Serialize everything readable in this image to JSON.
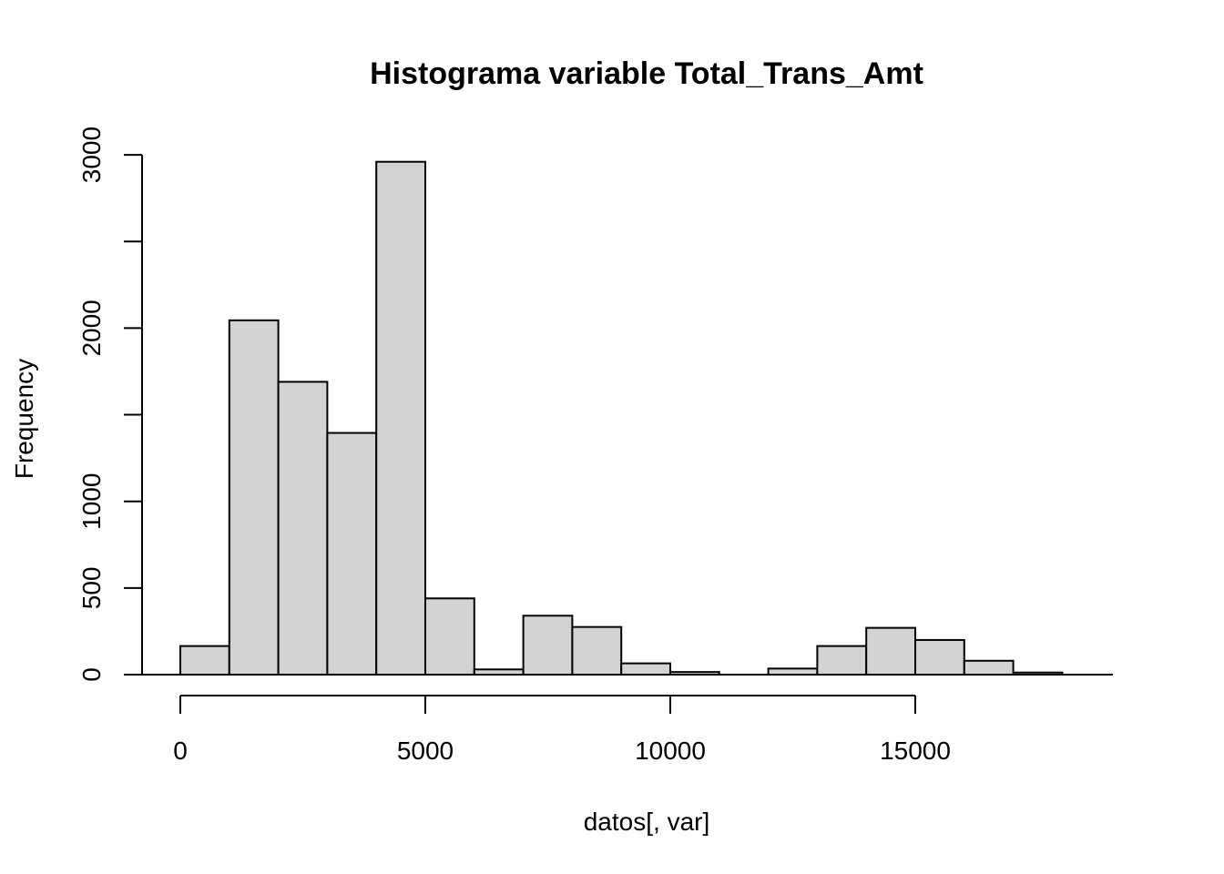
{
  "chart_data": {
    "type": "bar",
    "title": "Histograma variable Total_Trans_Amt",
    "xlabel": "datos[, var]",
    "ylabel": "Frequency",
    "bin_edges": [
      0,
      1000,
      2000,
      3000,
      4000,
      5000,
      6000,
      7000,
      8000,
      9000,
      10000,
      11000,
      12000,
      13000,
      14000,
      15000,
      16000,
      17000,
      18000
    ],
    "values": [
      165,
      2045,
      1690,
      1395,
      2960,
      440,
      30,
      340,
      275,
      65,
      15,
      0,
      35,
      165,
      270,
      200,
      80,
      12
    ],
    "xlim": [
      0,
      19000
    ],
    "ylim": [
      0,
      3000
    ],
    "x_ticks": [
      0,
      5000,
      10000,
      15000
    ],
    "x_tick_labels": [
      "0",
      "5000",
      "10000",
      "15000"
    ],
    "y_ticks": [
      0,
      500,
      1000,
      1500,
      2000,
      2500,
      3000
    ],
    "y_tick_labels": [
      "0",
      "500",
      "1000",
      "",
      "2000",
      "",
      "3000"
    ],
    "baseline": true,
    "grid": false
  }
}
